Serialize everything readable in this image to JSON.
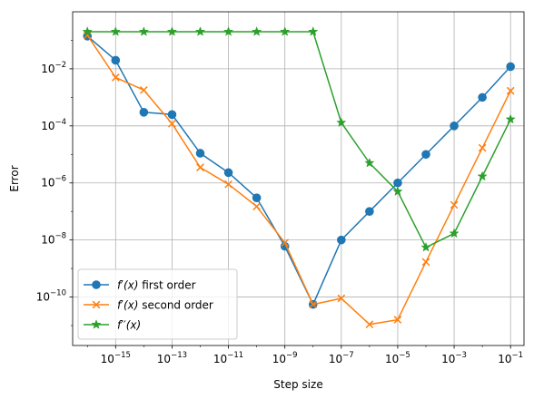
{
  "chart_data": {
    "type": "line",
    "title": "",
    "xlabel": "Step size",
    "ylabel": "Error",
    "xscale": "log",
    "yscale": "log",
    "xlim": [
      3e-17,
      0.3
    ],
    "ylim": [
      2e-12,
      1
    ],
    "grid": true,
    "legend_position": "lower-left",
    "x": [
      1e-16,
      1e-15,
      1e-14,
      1e-13,
      1e-12,
      1e-11,
      1e-10,
      1e-09,
      1e-08,
      1e-07,
      1e-06,
      1e-05,
      0.0001,
      0.001,
      0.01,
      0.1
    ],
    "x_tick_values": [
      1e-15,
      1e-13,
      1e-11,
      1e-09,
      1e-07,
      1e-05,
      0.001,
      0.1
    ],
    "x_tick_labels": [
      {
        "base": "10",
        "exp": "−15"
      },
      {
        "base": "10",
        "exp": "−13"
      },
      {
        "base": "10",
        "exp": "−11"
      },
      {
        "base": "10",
        "exp": "−9"
      },
      {
        "base": "10",
        "exp": "−7"
      },
      {
        "base": "10",
        "exp": "−5"
      },
      {
        "base": "10",
        "exp": "−3"
      },
      {
        "base": "10",
        "exp": "−1"
      }
    ],
    "y_tick_values": [
      1e-10,
      1e-08,
      1e-06,
      0.0001,
      0.01
    ],
    "y_tick_labels": [
      {
        "base": "10",
        "exp": "−10"
      },
      {
        "base": "10",
        "exp": "−8"
      },
      {
        "base": "10",
        "exp": "−6"
      },
      {
        "base": "10",
        "exp": "−4"
      },
      {
        "base": "10",
        "exp": "−2"
      }
    ],
    "series": [
      {
        "legend": {
          "prefix": "f",
          "prime": "′",
          "arg": "(x)",
          "suffix": " first order"
        },
        "color": "#1f77b4",
        "marker": "circle",
        "values": [
          0.14,
          0.02,
          0.0003,
          0.00025,
          1.1e-05,
          2.3e-06,
          3e-07,
          6e-09,
          5.5e-11,
          1e-08,
          1e-07,
          1e-06,
          1e-05,
          0.0001,
          0.001,
          0.012
        ]
      },
      {
        "legend": {
          "prefix": "f",
          "prime": "′",
          "arg": "(x)",
          "suffix": " second order"
        },
        "color": "#ff7f0e",
        "marker": "x",
        "values": [
          0.15,
          0.005,
          0.0018,
          0.00012,
          3.5e-06,
          9e-07,
          1.5e-07,
          8e-09,
          5.5e-11,
          9e-11,
          1.1e-11,
          1.6e-11,
          1.7e-09,
          1.7e-07,
          1.7e-05,
          0.0017
        ]
      },
      {
        "legend": {
          "prefix": "f",
          "prime": "′′",
          "arg": "(x)",
          "suffix": ""
        },
        "color": "#2ca02c",
        "marker": "star",
        "values": [
          0.2,
          0.2,
          0.2,
          0.2,
          0.2,
          0.2,
          0.2,
          0.2,
          0.2,
          0.00013,
          5e-06,
          5e-07,
          5.5e-09,
          1.7e-08,
          1.7e-06,
          0.00017
        ]
      }
    ]
  }
}
